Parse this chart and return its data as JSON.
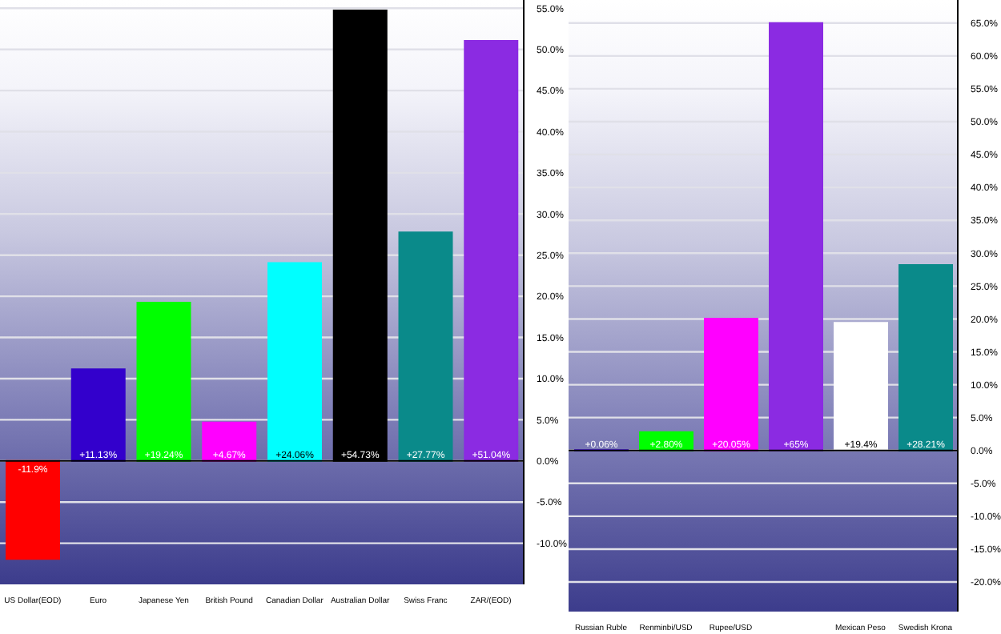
{
  "chart_data": [
    {
      "type": "bar",
      "categories": [
        "US Dollar(EOD)",
        "Euro",
        "Japanese Yen",
        "British Pound",
        "Canadian Dollar",
        "Australian Dollar",
        "Swiss Franc",
        "ZAR/(EOD)"
      ],
      "values": [
        -11.9,
        11.13,
        19.24,
        4.67,
        24.06,
        54.73,
        27.77,
        51.04
      ],
      "colors": [
        "#ff0000",
        "#3300cc",
        "#00ff00",
        "#ff00ff",
        "#00ffff",
        "#000000",
        "#0a8a8a",
        "#8b2be2"
      ],
      "value_labels": [
        "-11.9%",
        "+11.13%",
        "+19.24%",
        "+4.67%",
        "+24.06%",
        "+54.73%",
        "+27.77%",
        "+51.04%"
      ],
      "ylim": [
        -15,
        56
      ],
      "yticks": [
        {
          "value": -10,
          "label": "-10.0%"
        },
        {
          "value": -5,
          "label": "-5.0%"
        },
        {
          "value": 0,
          "label": "0.0%"
        },
        {
          "value": 5,
          "label": "5.0%"
        },
        {
          "value": 10,
          "label": "10.0%"
        },
        {
          "value": 15,
          "label": "15.0%"
        },
        {
          "value": 20,
          "label": "20.0%"
        },
        {
          "value": 25,
          "label": "25.0%"
        },
        {
          "value": 30,
          "label": "30.0%"
        },
        {
          "value": 35,
          "label": "35.0%"
        },
        {
          "value": 40,
          "label": "40.0%"
        },
        {
          "value": 45,
          "label": "45.0%"
        },
        {
          "value": 50,
          "label": "50.0%"
        },
        {
          "value": 55,
          "label": "55.0%"
        }
      ],
      "grid": "y"
    },
    {
      "type": "bar",
      "categories": [
        "Russian Ruble",
        "Renminbi/USD",
        "Rupee/USD",
        null,
        "Mexican Peso",
        "Swedish Krona"
      ],
      "values": [
        0.06,
        2.8,
        20.05,
        65,
        19.4,
        28.21
      ],
      "colors": [
        "#3300cc",
        "#00ff00",
        "#ff00ff",
        "#8b2be2",
        "#ffffff",
        "#0a8a8a"
      ],
      "value_labels": [
        "+0.06%",
        "+2.80%",
        "+20.05%",
        "+65%",
        "+19.4%",
        "+28.21%"
      ],
      "ylim": [
        -24.5,
        68.5
      ],
      "yticks": [
        {
          "value": -20,
          "label": "-20.0%"
        },
        {
          "value": -15,
          "label": "-15.0%"
        },
        {
          "value": -10,
          "label": "-10.0%"
        },
        {
          "value": -5,
          "label": "-5.0%"
        },
        {
          "value": 0,
          "label": "0.0%"
        },
        {
          "value": 5,
          "label": "5.0%"
        },
        {
          "value": 10,
          "label": "10.0%"
        },
        {
          "value": 15,
          "label": "15.0%"
        },
        {
          "value": 20,
          "label": "20.0%"
        },
        {
          "value": 25,
          "label": "25.0%"
        },
        {
          "value": 30,
          "label": "30.0%"
        },
        {
          "value": 35,
          "label": "35.0%"
        },
        {
          "value": 40,
          "label": "40.0%"
        },
        {
          "value": 45,
          "label": "45.0%"
        },
        {
          "value": 50,
          "label": "50.0%"
        },
        {
          "value": 55,
          "label": "55.0%"
        },
        {
          "value": 60,
          "label": "60.0%"
        },
        {
          "value": 65,
          "label": "65.0%"
        }
      ],
      "grid": "y"
    }
  ]
}
